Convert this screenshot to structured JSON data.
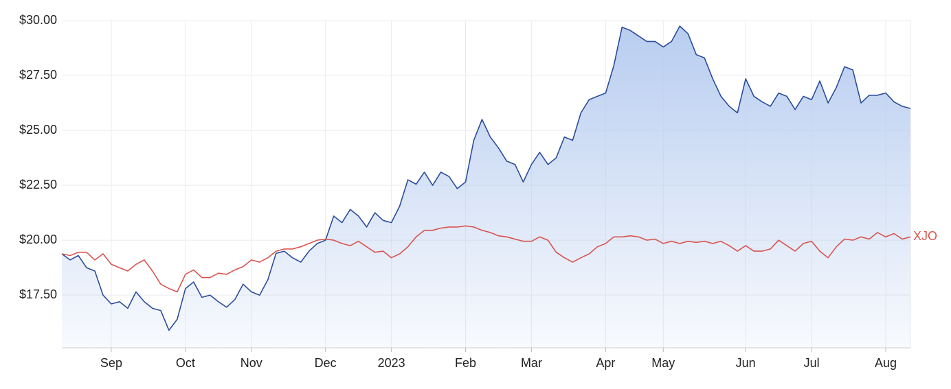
{
  "chart_data": {
    "type": "area-line",
    "categories": [
      null,
      null,
      null,
      null,
      null,
      null,
      "Sep",
      null,
      null,
      null,
      null,
      null,
      null,
      null,
      null,
      "Oct",
      null,
      null,
      null,
      null,
      null,
      null,
      null,
      "Nov",
      null,
      null,
      null,
      null,
      null,
      null,
      null,
      null,
      "Dec",
      null,
      null,
      null,
      null,
      null,
      null,
      null,
      "2023",
      null,
      null,
      null,
      null,
      null,
      null,
      null,
      null,
      "Feb",
      null,
      null,
      null,
      null,
      null,
      null,
      null,
      "Mar",
      null,
      null,
      null,
      null,
      null,
      null,
      null,
      null,
      "Apr",
      null,
      null,
      null,
      null,
      null,
      null,
      "May",
      null,
      null,
      null,
      null,
      null,
      null,
      null,
      null,
      null,
      "Jun",
      null,
      null,
      null,
      null,
      null,
      null,
      null,
      "Jul",
      null,
      null,
      null,
      null,
      null,
      null,
      null,
      null,
      "Aug",
      null,
      null,
      null
    ],
    "series": [
      {
        "color": "#2b4c9b",
        "fill": "#b8cdf0",
        "values": [
          19.38,
          19.1,
          19.3,
          18.75,
          18.6,
          17.5,
          17.1,
          17.2,
          16.9,
          17.65,
          17.2,
          16.9,
          16.8,
          15.9,
          16.4,
          17.8,
          18.1,
          17.4,
          17.5,
          17.2,
          16.95,
          17.3,
          18.0,
          17.65,
          17.5,
          18.2,
          19.4,
          19.5,
          19.2,
          19.0,
          19.5,
          19.85,
          20.0,
          21.1,
          20.8,
          21.4,
          21.1,
          20.6,
          21.25,
          20.9,
          20.8,
          21.55,
          22.75,
          22.55,
          23.1,
          22.5,
          23.1,
          22.9,
          22.35,
          22.65,
          24.55,
          25.5,
          24.7,
          24.2,
          23.6,
          23.45,
          22.65,
          23.45,
          24.0,
          23.45,
          23.75,
          24.7,
          24.55,
          25.8,
          26.4,
          26.55,
          26.7,
          27.95,
          29.7,
          29.55,
          29.3,
          29.05,
          29.05,
          28.8,
          29.05,
          29.75,
          29.4,
          28.45,
          28.3,
          27.35,
          26.55,
          26.1,
          25.8,
          27.35,
          26.55,
          26.3,
          26.1,
          26.7,
          26.55,
          25.95,
          26.55,
          26.4,
          27.25,
          26.25,
          26.95,
          27.9,
          27.75,
          26.25,
          26.6,
          26.6,
          26.7,
          26.3,
          26.1,
          26.0
        ]
      },
      {
        "name": "XJO",
        "color": "#d9534f",
        "values": [
          19.38,
          19.3,
          19.45,
          19.45,
          19.1,
          19.38,
          18.9,
          18.75,
          18.6,
          18.9,
          19.1,
          18.6,
          18.0,
          17.8,
          17.65,
          18.45,
          18.65,
          18.3,
          18.3,
          18.5,
          18.45,
          18.65,
          18.8,
          19.1,
          19.0,
          19.2,
          19.5,
          19.6,
          19.6,
          19.7,
          19.85,
          20.0,
          20.05,
          20.0,
          19.85,
          19.75,
          19.95,
          19.7,
          19.45,
          19.5,
          19.2,
          19.38,
          19.7,
          20.15,
          20.45,
          20.45,
          20.55,
          20.6,
          20.6,
          20.65,
          20.6,
          20.45,
          20.35,
          20.2,
          20.15,
          20.05,
          19.95,
          19.95,
          20.15,
          20.0,
          19.45,
          19.2,
          19.0,
          19.2,
          19.38,
          19.7,
          19.85,
          20.15,
          20.15,
          20.2,
          20.15,
          20.0,
          20.05,
          19.85,
          19.95,
          19.85,
          19.95,
          19.9,
          19.95,
          19.85,
          19.95,
          19.75,
          19.5,
          19.75,
          19.5,
          19.5,
          19.6,
          20.0,
          19.75,
          19.5,
          19.85,
          19.95,
          19.5,
          19.2,
          19.7,
          20.05,
          20.0,
          20.15,
          20.05,
          20.35,
          20.15,
          20.3,
          20.05,
          20.15
        ]
      }
    ],
    "ylim": [
      15.1,
      30
    ],
    "yticks": [
      {
        "value": 17.5,
        "label": "$17.50"
      },
      {
        "value": 20,
        "label": "$20.00"
      },
      {
        "value": 22.5,
        "label": "$22.50"
      },
      {
        "value": 25,
        "label": "$25.00"
      },
      {
        "value": 27.5,
        "label": "$27.50"
      },
      {
        "value": 30,
        "label": "$30.00"
      }
    ],
    "grid": true
  }
}
